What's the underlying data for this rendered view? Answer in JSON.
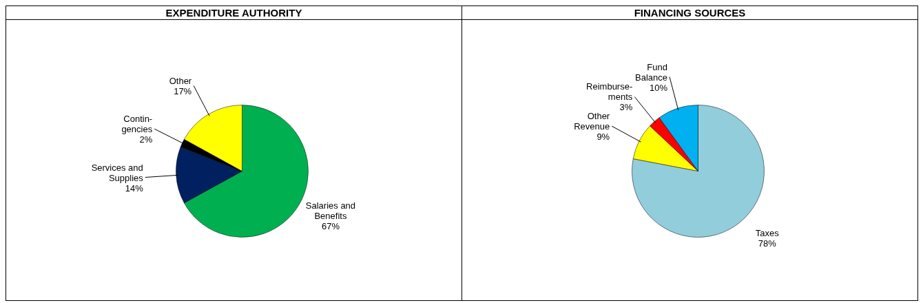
{
  "chart_data": [
    {
      "type": "pie",
      "title": "EXPENDITURE AUTHORITY",
      "categories": [
        "Salaries and\nBenefits",
        "Services and\nSupplies",
        "Contin-\ngencies",
        "Other\n"
      ],
      "values": [
        67,
        14,
        2,
        17
      ],
      "value_labels": [
        "67%",
        "14%",
        "2%",
        "17%"
      ],
      "colors": [
        "#00b050",
        "#002060",
        "#000000",
        "#ffff00"
      ]
    },
    {
      "type": "pie",
      "title": "FINANCING SOURCES",
      "categories": [
        "Taxes",
        "Other\nRevenue",
        "Reimburse-\nments",
        "Fund\nBalance"
      ],
      "values": [
        78,
        9,
        3,
        10
      ],
      "value_labels": [
        "78%",
        "9%",
        "3%",
        "10%"
      ],
      "colors": [
        "#92cddc",
        "#ffff00",
        "#ff0000",
        "#00b0f0"
      ]
    }
  ]
}
